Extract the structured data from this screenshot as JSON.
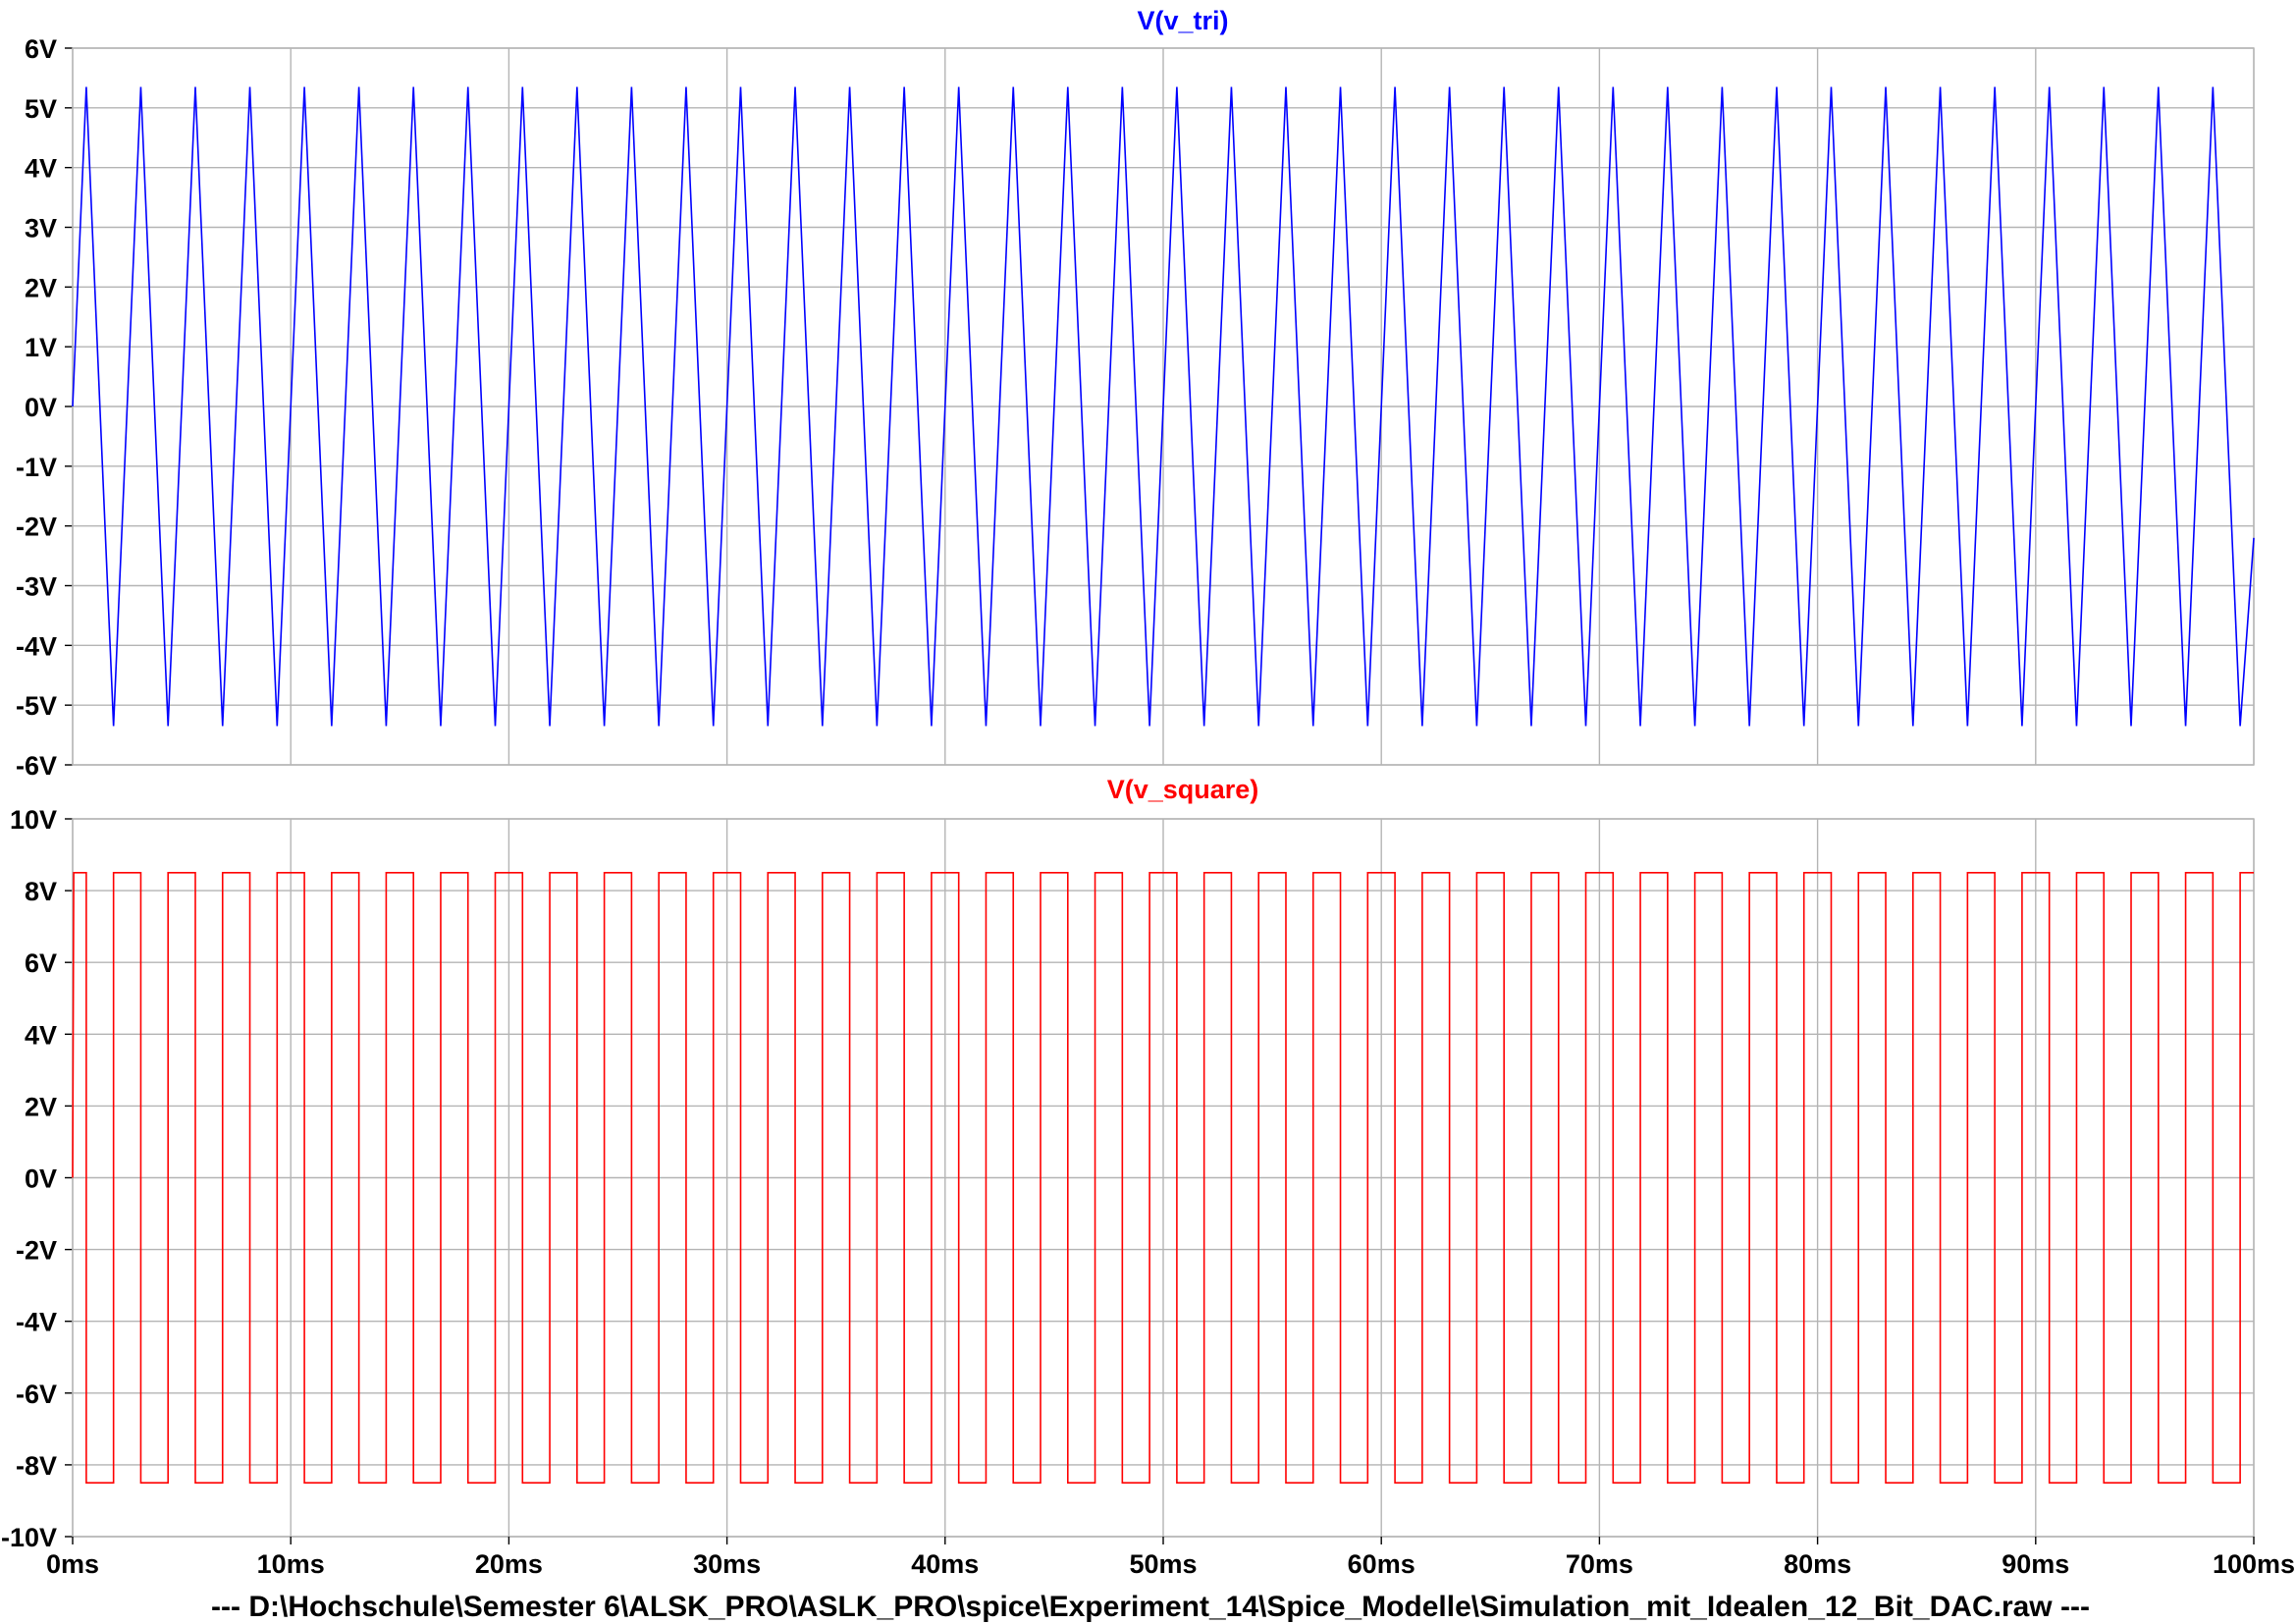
{
  "footer": {
    "path_text": "---  D:\\Hochschule\\Semester 6\\ALSK_PRO\\ASLK_PRO\\spice\\Experiment_14\\Spice_Modelle\\Simulation_mit_Idealen_12_Bit_DAC.raw  ---"
  },
  "chart_data": [
    {
      "type": "line",
      "title": "V(v_tri)",
      "title_color": "#0000ff",
      "series": [
        {
          "name": "V(v_tri)",
          "color": "#0000ff",
          "waveform": "triangle",
          "period_ms": 2.5,
          "high": 5.35,
          "low": -5.35,
          "start_value": 0,
          "end_value": -2.2,
          "first_peak_ms": 0.625
        }
      ],
      "xlabel": "",
      "ylabel": "",
      "xlim": [
        0,
        100
      ],
      "ylim": [
        -6,
        6
      ],
      "y_ticks": [
        6,
        5,
        4,
        3,
        2,
        1,
        0,
        -1,
        -2,
        -3,
        -4,
        -5,
        -6
      ],
      "y_tick_labels": [
        "6V",
        "5V",
        "4V",
        "3V",
        "2V",
        "1V",
        "0V",
        "-1V",
        "-2V",
        "-3V",
        "-4V",
        "-5V",
        "-6V"
      ],
      "grid": true
    },
    {
      "type": "line",
      "title": "V(v_square)",
      "title_color": "#ff0000",
      "series": [
        {
          "name": "V(v_square)",
          "color": "#ff0000",
          "waveform": "square",
          "period_ms": 2.5,
          "high": 8.5,
          "low": -8.5,
          "first_fall_ms": 0.625,
          "end_value": 8.5
        }
      ],
      "xlabel": "",
      "ylabel": "",
      "xlim": [
        0,
        100
      ],
      "ylim": [
        -10,
        10
      ],
      "y_ticks": [
        10,
        8,
        6,
        4,
        2,
        0,
        -2,
        -4,
        -6,
        -8,
        -10
      ],
      "y_tick_labels": [
        "10V",
        "8V",
        "6V",
        "4V",
        "2V",
        "0V",
        "-2V",
        "-4V",
        "-6V",
        "-8V",
        "-10V"
      ],
      "x_ticks": [
        0,
        10,
        20,
        30,
        40,
        50,
        60,
        70,
        80,
        90,
        100
      ],
      "x_tick_labels": [
        "0ms",
        "10ms",
        "20ms",
        "30ms",
        "40ms",
        "50ms",
        "60ms",
        "70ms",
        "80ms",
        "90ms",
        "100ms"
      ],
      "grid": true
    }
  ]
}
